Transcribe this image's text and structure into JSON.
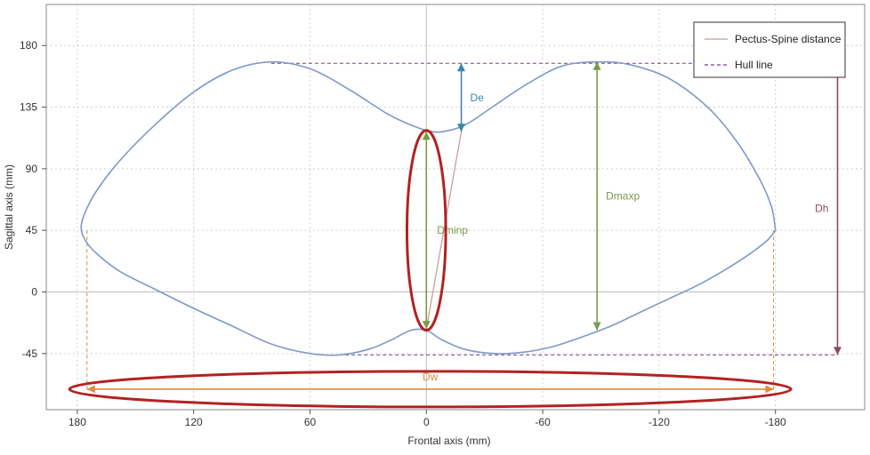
{
  "chart_data": {
    "type": "line",
    "xlabel": "Frontal axis (mm)",
    "ylabel": "Sagittal axis (mm)",
    "x_reversed": true,
    "xlim": [
      196,
      -226
    ],
    "ylim": [
      -86,
      210
    ],
    "xticks": [
      180,
      120,
      60,
      0,
      -60,
      -120,
      -180
    ],
    "yticks": [
      180,
      135,
      90,
      45,
      0,
      -45
    ],
    "grid": true,
    "legend": {
      "position": "top-right",
      "entries": [
        {
          "name": "Pectus-Spine distance",
          "style": "solid",
          "color": "#c49a94"
        },
        {
          "name": "Hull line",
          "style": "dashed",
          "color": "#7b3f8a"
        }
      ]
    },
    "series": [
      {
        "kind": "outline",
        "color": "#7f99c8",
        "closed": true,
        "x": [
          -180,
          -178,
          -172,
          -160,
          -145,
          -125,
          -105,
          -88,
          -70,
          -52,
          -35,
          -20,
          -8,
          0,
          8,
          20,
          40,
          60,
          80,
          100,
          120,
          140,
          158,
          170,
          176,
          178,
          176,
          170,
          158,
          140,
          120,
          100,
          80,
          60,
          45,
          30,
          18,
          8,
          0,
          -8,
          -20,
          -35,
          -50,
          -65,
          -80,
          -95,
          -110,
          -125,
          -140,
          -155,
          -168,
          -176,
          -180
        ],
        "y": [
          45,
          62,
          82,
          110,
          135,
          156,
          166,
          168,
          165,
          152,
          136,
          122,
          117,
          118,
          122,
          130,
          148,
          163,
          168,
          162,
          146,
          122,
          96,
          74,
          58,
          47,
          38,
          28,
          15,
          2,
          -12,
          -25,
          -38,
          -45,
          -46,
          -42,
          -35,
          -28,
          -28,
          -35,
          -42,
          -45,
          -44,
          -40,
          -33,
          -25,
          -15,
          -5,
          5,
          17,
          29,
          38,
          45
        ]
      }
    ],
    "annotations": [
      {
        "label": "De",
        "color": "#3a86a6",
        "x": -18,
        "y_from": 167,
        "y_to": 117
      },
      {
        "label": "Dminp",
        "color": "#7a9a4a",
        "x": 0,
        "y_from": 117,
        "y_to": -27
      },
      {
        "label": "Dmaxp",
        "color": "#7a9a4a",
        "x": -88,
        "y_from": 168,
        "y_to": -28
      },
      {
        "label": "Dh",
        "color": "#8e4a5e",
        "x": -212,
        "y_from": 168,
        "y_to": -46
      },
      {
        "label": "Dw",
        "color": "#e08a3c",
        "y": -71,
        "x_from": 175,
        "x_to": -179
      }
    ],
    "pectus_spine_line": {
      "x_from": -18,
      "y_from": 117,
      "x_to": 0,
      "y_to": -27
    },
    "hull_lines": [
      {
        "y": 167,
        "x_from": 80,
        "x_to": -212
      },
      {
        "y": -46,
        "x_from": 45,
        "x_to": -212
      }
    ],
    "width_guides": [
      {
        "x": 175,
        "y_from": 45,
        "y_to": -71
      },
      {
        "x": -179,
        "y_from": 45,
        "y_to": -71
      }
    ],
    "highlights": [
      {
        "shape": "ellipse",
        "color": "#b22222",
        "cx": 0,
        "cy": 45,
        "rx": 10,
        "ry": 73
      },
      {
        "shape": "ellipse",
        "color": "#b22222",
        "cx": -2,
        "cy": -71,
        "rx": 186,
        "ry": 13
      }
    ]
  }
}
